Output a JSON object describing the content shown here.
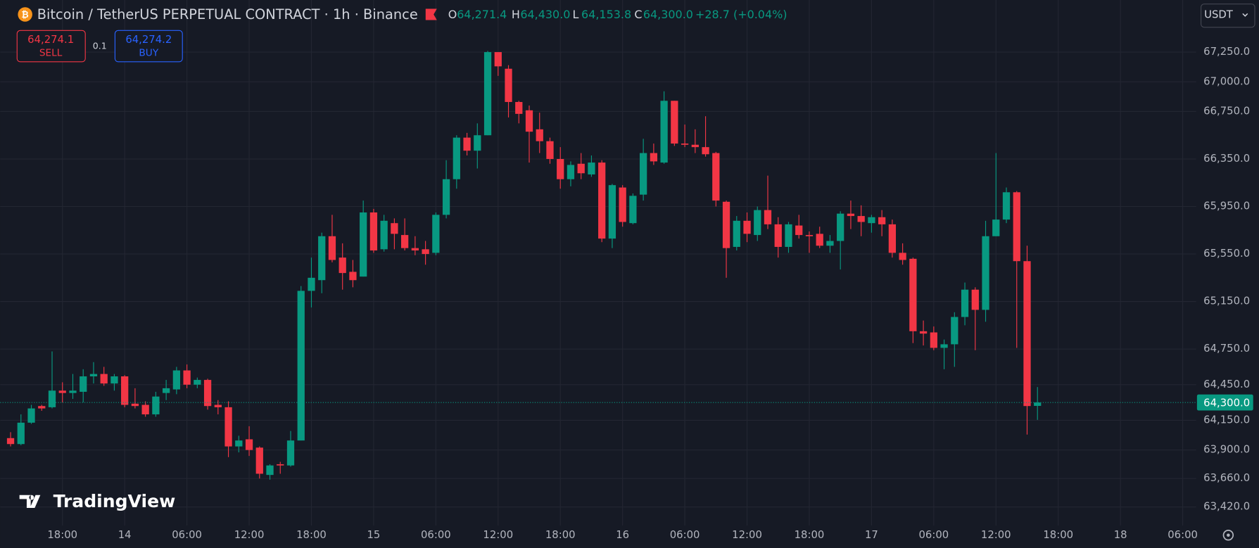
{
  "header": {
    "symbol": "Bitcoin / TetherUS PERPETUAL CONTRACT · 1h · Binance",
    "ohlc": [
      {
        "key": "O",
        "value": "64,271.4"
      },
      {
        "key": "H",
        "value": "64,430.0"
      },
      {
        "key": "L",
        "value": "64,153.8"
      },
      {
        "key": "C",
        "value": "64,300.0"
      }
    ],
    "change": "+28.7 (+0.04%)",
    "currency": "USDT"
  },
  "trade": {
    "sell_price": "64,274.1",
    "sell_label": "SELL",
    "quantity": "0.1",
    "buy_price": "64,274.2",
    "buy_label": "BUY"
  },
  "logo": "TradingView",
  "chart_data": {
    "type": "candlestick",
    "up_color": "#089981",
    "down_color": "#f23645",
    "grid": true,
    "xlim": [
      -1.0,
      114.3
    ],
    "xticks": [
      {
        "value": 5,
        "label": "18:00"
      },
      {
        "value": 11,
        "label": "14"
      },
      {
        "value": 17,
        "label": "06:00"
      },
      {
        "value": 23,
        "label": "12:00"
      },
      {
        "value": 29,
        "label": "18:00"
      },
      {
        "value": 35,
        "label": "15"
      },
      {
        "value": 41,
        "label": "06:00"
      },
      {
        "value": 47,
        "label": "12:00"
      },
      {
        "value": 53,
        "label": "18:00"
      },
      {
        "value": 59,
        "label": "16"
      },
      {
        "value": 65,
        "label": "06:00"
      },
      {
        "value": 71,
        "label": "12:00"
      },
      {
        "value": 77,
        "label": "18:00"
      },
      {
        "value": 83,
        "label": "17"
      },
      {
        "value": 89,
        "label": "06:00"
      },
      {
        "value": 95,
        "label": "12:00"
      },
      {
        "value": 101,
        "label": "18:00"
      },
      {
        "value": 107,
        "label": "18"
      },
      {
        "value": 113,
        "label": "06:00"
      }
    ],
    "ylim": [
      63264,
      67486
    ],
    "yticks": [
      {
        "value": 67250,
        "label": "67,250.0"
      },
      {
        "value": 67000,
        "label": "67,000.0"
      },
      {
        "value": 66750,
        "label": "66,750.0"
      },
      {
        "value": 66350,
        "label": "66,350.0"
      },
      {
        "value": 65950,
        "label": "65,950.0"
      },
      {
        "value": 65550,
        "label": "65,550.0"
      },
      {
        "value": 65150,
        "label": "65,150.0"
      },
      {
        "value": 64750,
        "label": "64,750.0"
      },
      {
        "value": 64450,
        "label": "64,450.0"
      },
      {
        "value": 64150,
        "label": "64,150.0"
      },
      {
        "value": 63900,
        "label": "63,900.0"
      },
      {
        "value": 63660,
        "label": "63,660.0"
      },
      {
        "value": 63420,
        "label": "63,420.0"
      }
    ],
    "last_price": {
      "value": 64300,
      "label": "64,300.0"
    },
    "open": [
      64000,
      63950,
      64130,
      64270,
      64260,
      64400,
      64380,
      64390,
      64520,
      64540,
      64460,
      64520,
      64290,
      64280,
      64200,
      64380,
      64410,
      64570,
      64450,
      64490,
      64280,
      64260,
      63930,
      63990,
      63920,
      63690,
      63780,
      63770,
      63980,
      65240,
      65330,
      65700,
      65520,
      65400,
      65360,
      65900,
      65590,
      65810,
      65710,
      65600,
      65590,
      65560,
      65880,
      66180,
      66530,
      66420,
      66550,
      67250,
      67110,
      66830,
      66760,
      66600,
      66500,
      66350,
      66180,
      66310,
      66220,
      66320,
      65680,
      66110,
      65810,
      66050,
      66400,
      66320,
      66840,
      66480,
      66470,
      66450,
      66400,
      65990,
      65610,
      65830,
      65710,
      65920,
      65800,
      65610,
      65790,
      65710,
      65720,
      65620,
      65660,
      65890,
      65870,
      65810,
      65860,
      65800,
      65560,
      65510,
      64900,
      64890,
      64760,
      64790,
      65020,
      65250,
      65080,
      65700,
      65840,
      66070,
      65490,
      64271.4
    ],
    "high": [
      64050,
      64200,
      64280,
      64280,
      64730,
      64470,
      64540,
      64580,
      64640,
      64600,
      64540,
      64530,
      64420,
      64310,
      64390,
      64490,
      64600,
      64620,
      64510,
      64500,
      64320,
      64310,
      64020,
      64100,
      63930,
      63780,
      63800,
      64060,
      65280,
      65520,
      65730,
      65880,
      65640,
      65500,
      66000,
      65930,
      65880,
      65850,
      65850,
      65700,
      65660,
      65900,
      66340,
      66550,
      66570,
      66650,
      67260,
      67250,
      67140,
      66840,
      66800,
      66740,
      66530,
      66450,
      66330,
      66400,
      66380,
      66340,
      66140,
      66130,
      66060,
      66520,
      66480,
      66920,
      66840,
      66640,
      66600,
      66710,
      66410,
      66000,
      65870,
      65900,
      65950,
      66210,
      65860,
      65820,
      65880,
      65740,
      65780,
      65710,
      65910,
      66000,
      65960,
      65880,
      65920,
      65840,
      65640,
      65520,
      64990,
      64940,
      64830,
      65060,
      65310,
      65270,
      65830,
      66400,
      66110,
      66080,
      65620,
      64430
    ],
    "low": [
      63930,
      63940,
      64120,
      64230,
      64250,
      64300,
      64330,
      64300,
      64460,
      64440,
      64400,
      64260,
      64250,
      64180,
      64180,
      64320,
      64370,
      64420,
      64420,
      64240,
      64200,
      63840,
      63880,
      63850,
      63660,
      63650,
      63700,
      63760,
      63980,
      65100,
      65220,
      65480,
      65250,
      65270,
      65360,
      65560,
      65570,
      65590,
      65580,
      65540,
      65460,
      65540,
      65850,
      66100,
      66380,
      66270,
      66550,
      67050,
      66700,
      66650,
      66320,
      66400,
      66310,
      66100,
      66120,
      66180,
      66200,
      65650,
      65600,
      65780,
      65800,
      66000,
      66300,
      66310,
      66460,
      66450,
      66400,
      66370,
      65950,
      65350,
      65580,
      65650,
      65660,
      65760,
      65520,
      65560,
      65680,
      65560,
      65600,
      65560,
      65420,
      65760,
      65700,
      65730,
      65700,
      65520,
      65460,
      64800,
      64780,
      64740,
      64580,
      64600,
      64950,
      64740,
      64980,
      65700,
      65810,
      64760,
      64030,
      64153.8
    ],
    "close": [
      63950,
      64130,
      64250,
      64250,
      64400,
      64380,
      64400,
      64520,
      64540,
      64460,
      64520,
      64280,
      64270,
      64200,
      64350,
      64420,
      64570,
      64450,
      64490,
      64270,
      64260,
      63930,
      63980,
      63900,
      63700,
      63770,
      63770,
      63980,
      65240,
      65350,
      65700,
      65500,
      65390,
      65330,
      65900,
      65580,
      65830,
      65720,
      65600,
      65580,
      65550,
      65880,
      66180,
      66530,
      66420,
      66550,
      67250,
      67130,
      66830,
      66730,
      66580,
      66500,
      66350,
      66180,
      66300,
      66230,
      66320,
      65680,
      66130,
      65820,
      66040,
      66400,
      66330,
      66840,
      66480,
      66470,
      66450,
      66390,
      66000,
      65600,
      65830,
      65720,
      65920,
      65800,
      65610,
      65800,
      65710,
      65700,
      65620,
      65660,
      65890,
      65870,
      65820,
      65860,
      65800,
      65560,
      65500,
      64900,
      64880,
      64760,
      64790,
      65020,
      65250,
      65080,
      65700,
      65840,
      66070,
      65490,
      64270,
      64300
    ]
  }
}
